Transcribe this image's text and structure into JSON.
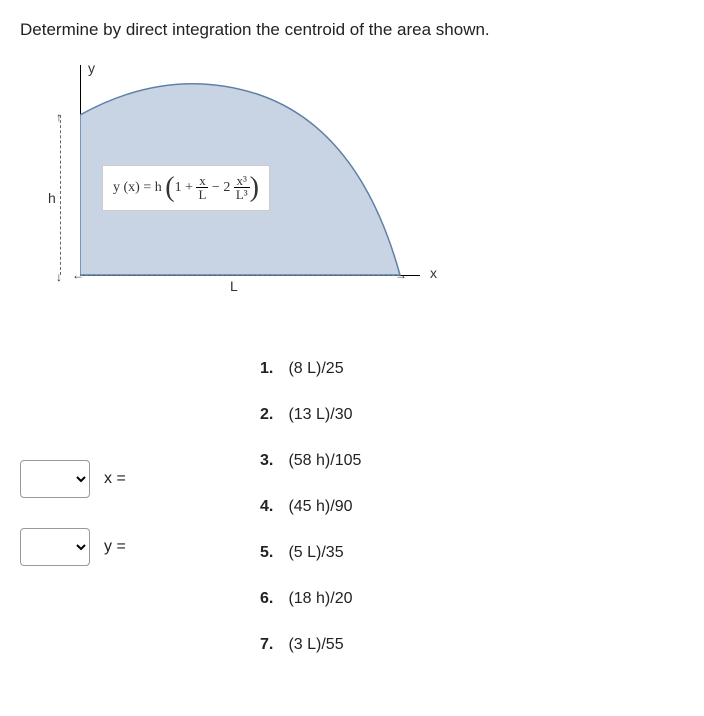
{
  "question": "Determine by direct integration the centroid of the area shown.",
  "figure": {
    "y_label": "y",
    "x_label": "x",
    "h_label": "h",
    "L_label": "L",
    "formula_lhs": "y (x) = h",
    "formula_term1": "1 +",
    "frac1_num": "x",
    "frac1_den": "L",
    "formula_mid": " − 2 ",
    "frac2_num": "x³",
    "frac2_den": "L³",
    "fill_color": "#c8d4e3",
    "stroke_color": "#6080a8"
  },
  "inputs": {
    "x_label": "x =",
    "y_label": "y ="
  },
  "answers": [
    {
      "n": "1.",
      "text": "(8 L)/25"
    },
    {
      "n": "2.",
      "text": "(13 L)/30"
    },
    {
      "n": "3.",
      "text": "(58 h)/105"
    },
    {
      "n": "4.",
      "text": "(45 h)/90"
    },
    {
      "n": "5.",
      "text": "(5 L)/35"
    },
    {
      "n": "6.",
      "text": "(18 h)/20"
    },
    {
      "n": "7.",
      "text": "(3 L)/55"
    }
  ]
}
